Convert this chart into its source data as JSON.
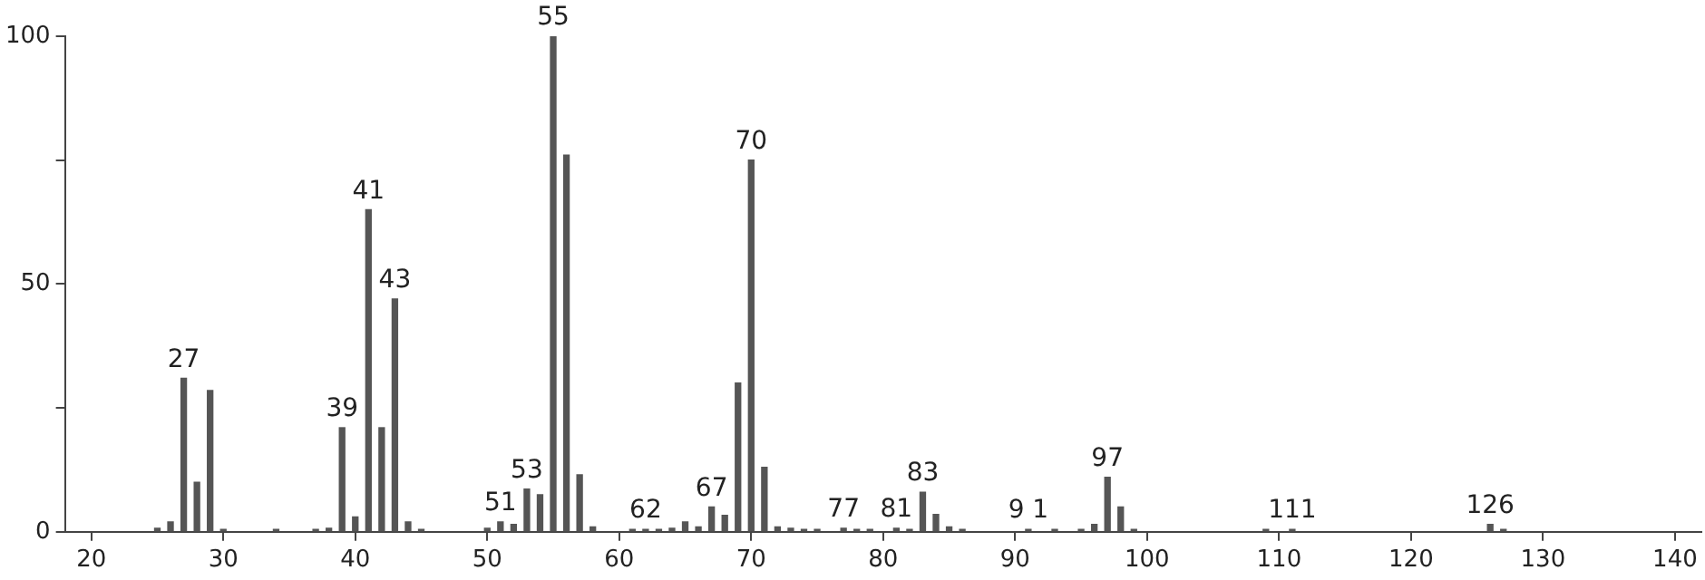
{
  "chart_data": {
    "type": "bar",
    "color": "#555555",
    "x": [
      25,
      26,
      27,
      28,
      29,
      30,
      34,
      37,
      38,
      39,
      40,
      41,
      42,
      43,
      44,
      45,
      50,
      51,
      52,
      53,
      54,
      55,
      56,
      57,
      58,
      61,
      62,
      63,
      64,
      65,
      66,
      67,
      68,
      69,
      70,
      71,
      72,
      73,
      74,
      75,
      77,
      78,
      79,
      81,
      82,
      83,
      84,
      85,
      86,
      91,
      93,
      95,
      96,
      97,
      98,
      99,
      109,
      111,
      126,
      127
    ],
    "values": [
      0.7,
      2,
      31,
      10,
      28.5,
      0.5,
      0.5,
      0.5,
      0.7,
      21,
      3,
      65,
      21,
      47,
      2,
      0.5,
      0.7,
      2,
      1.5,
      8.6,
      7.5,
      100,
      76,
      11.5,
      1,
      0.5,
      0.5,
      0.5,
      0.7,
      2,
      1,
      5,
      3.3,
      30,
      75,
      13,
      1,
      0.7,
      0.5,
      0.5,
      0.7,
      0.5,
      0.5,
      0.7,
      0.5,
      8,
      3.5,
      1,
      0.5,
      0.5,
      0.5,
      0.5,
      1.5,
      11,
      5,
      0.5,
      0.5,
      0.5,
      1.5,
      0.5
    ],
    "xlim": [
      18,
      142
    ],
    "xticks": [
      20,
      30,
      40,
      50,
      60,
      70,
      80,
      90,
      100,
      110,
      120,
      130,
      140
    ],
    "ylim": [
      0,
      100
    ],
    "yticks": [
      0,
      {
        "value": 25,
        "label": null
      },
      50,
      {
        "value": 75,
        "label": null
      },
      100
    ],
    "grid": false,
    "legend": false,
    "annotations": [
      {
        "text": "27",
        "x": 27,
        "y": 31
      },
      {
        "text": "39",
        "x": 39,
        "y": 21
      },
      {
        "text": "41",
        "x": 41,
        "y": 65
      },
      {
        "text": "43",
        "x": 43,
        "y": 47
      },
      {
        "text": "51",
        "x": 51,
        "y": 2
      },
      {
        "text": "53",
        "x": 53,
        "y": 8.6
      },
      {
        "text": "55",
        "x": 55,
        "y": 100
      },
      {
        "text": "62",
        "x": 62,
        "y": 0.5
      },
      {
        "text": "67",
        "x": 67,
        "y": 5
      },
      {
        "text": "70",
        "x": 70,
        "y": 75
      },
      {
        "text": "77",
        "x": 77,
        "y": 0.7
      },
      {
        "text": "81",
        "x": 81,
        "y": 0.7
      },
      {
        "text": "83",
        "x": 83,
        "y": 8
      },
      {
        "text": "9 1",
        "x": 91,
        "y": 0.5
      },
      {
        "text": "97",
        "x": 97,
        "y": 11
      },
      {
        "text": "111",
        "x": 111,
        "y": 0.5
      },
      {
        "text": "126",
        "x": 126,
        "y": 1.5
      }
    ]
  }
}
